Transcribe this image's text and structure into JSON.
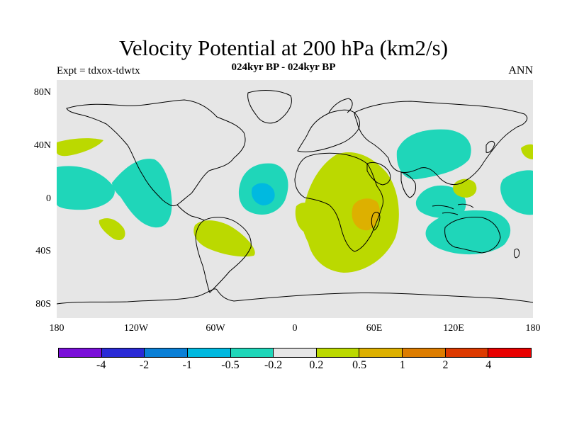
{
  "plot": {
    "title": "Velocity Potential at 200 hPa (km2/s)",
    "subtitle": "024kyr BP - 024kyr BP",
    "left_label": "Expt = tdxox-tdwtx",
    "right_label": "ANN"
  },
  "axes": {
    "y_ticks": [
      "80N",
      "40N",
      "0",
      "40S",
      "80S"
    ],
    "x_ticks": [
      "180",
      "120W",
      "60W",
      "0",
      "60E",
      "120E",
      "180"
    ]
  },
  "colorbar": {
    "labels": [
      "-4",
      "-2",
      "-1",
      "-0.5",
      "-0.2",
      "0.2",
      "0.5",
      "1",
      "2",
      "4"
    ],
    "colors": [
      "#7a0fd9",
      "#2a2ad6",
      "#0a7fd6",
      "#00b9e0",
      "#1fd6b9",
      "#e6e6e6",
      "#bbd900",
      "#ddb000",
      "#dd7d00",
      "#dd3a00",
      "#e80000"
    ]
  },
  "colors": {
    "background": "#e6e6e6",
    "neg_weak": "#1fd6b9",
    "neg_mod": "#00b9e0",
    "pos_weak": "#bbd900",
    "pos_mod": "#ddb000"
  }
}
